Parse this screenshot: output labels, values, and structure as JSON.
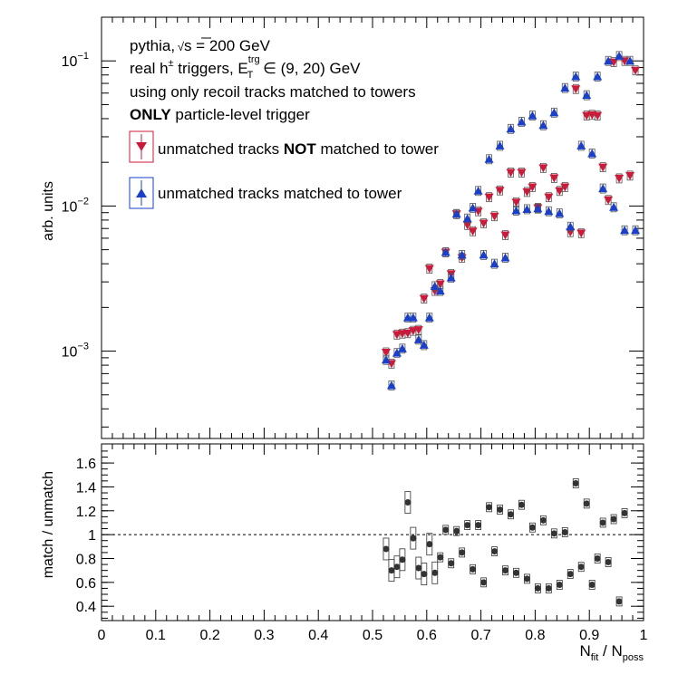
{
  "chart_data": {
    "type": "scatter",
    "top_panel": {
      "ylabel": "arb. units",
      "yscale": "log",
      "ylim": [
        0.00025,
        0.2
      ],
      "y_ticks": [
        {
          "value": 0.1,
          "base": "10",
          "exp": "−1"
        },
        {
          "value": 0.01,
          "base": "10",
          "exp": "−2"
        },
        {
          "value": 0.001,
          "base": "10",
          "exp": "−3"
        }
      ],
      "text": {
        "line1a": "pythia, ",
        "line1b": "s",
        "line1c": " = 200 GeV",
        "line2a": "real h",
        "line2b": "±",
        "line2c": " triggers, E",
        "line2d": "trg",
        "line2e": "T",
        "line2f": " ∈ (9, 20) GeV",
        "line3": "using only recoil tracks matched to towers",
        "line4a": "ONLY",
        "line4b": " particle-level trigger"
      },
      "legend": {
        "entry1a": "unmatched tracks ",
        "entry1b": "NOT",
        "entry1c": " matched to tower",
        "entry2": "unmatched tracks matched to tower"
      },
      "series": [
        {
          "name": "unmatched tracks NOT matched to tower",
          "color": "#cc1a3a",
          "marker": "triangle-down",
          "points": [
            [
              0.525,
              0.00098
            ],
            [
              0.535,
              0.00082
            ],
            [
              0.545,
              0.0013
            ],
            [
              0.555,
              0.00132
            ],
            [
              0.565,
              0.00133
            ],
            [
              0.575,
              0.00138
            ],
            [
              0.585,
              0.0014
            ],
            [
              0.595,
              0.0023
            ],
            [
              0.605,
              0.0037
            ],
            [
              0.615,
              0.0026
            ],
            [
              0.625,
              0.0029
            ],
            [
              0.635,
              0.0048
            ],
            [
              0.645,
              0.0034
            ],
            [
              0.655,
              0.0088
            ],
            [
              0.665,
              0.0044
            ],
            [
              0.675,
              0.0074
            ],
            [
              0.685,
              0.0067
            ],
            [
              0.695,
              0.0092
            ],
            [
              0.705,
              0.0076
            ],
            [
              0.715,
              0.0115
            ],
            [
              0.725,
              0.0085
            ],
            [
              0.735,
              0.0128
            ],
            [
              0.745,
              0.0063
            ],
            [
              0.755,
              0.017
            ],
            [
              0.765,
              0.0106
            ],
            [
              0.775,
              0.017
            ],
            [
              0.785,
              0.0125
            ],
            [
              0.795,
              0.0135
            ],
            [
              0.805,
              0.0097
            ],
            [
              0.815,
              0.0183
            ],
            [
              0.825,
              0.0115
            ],
            [
              0.835,
              0.0156
            ],
            [
              0.845,
              0.0127
            ],
            [
              0.855,
              0.0135
            ],
            [
              0.865,
              0.0066
            ],
            [
              0.875,
              0.064
            ],
            [
              0.885,
              0.0065
            ],
            [
              0.895,
              0.042
            ],
            [
              0.905,
              0.0425
            ],
            [
              0.915,
              0.042
            ],
            [
              0.925,
              0.0185
            ],
            [
              0.935,
              0.011
            ],
            [
              0.945,
              0.098
            ],
            [
              0.955,
              0.0155
            ],
            [
              0.965,
              0.1
            ],
            [
              0.975,
              0.0162
            ],
            [
              0.985,
              0.086
            ]
          ]
        },
        {
          "name": "unmatched tracks matched to tower",
          "color": "#1a3fc8",
          "marker": "triangle-up",
          "points": [
            [
              0.525,
              0.00087
            ],
            [
              0.535,
              0.00058
            ],
            [
              0.545,
              0.00097
            ],
            [
              0.555,
              0.00104
            ],
            [
              0.565,
              0.0017
            ],
            [
              0.575,
              0.0017
            ],
            [
              0.585,
              0.0012
            ],
            [
              0.595,
              0.0011
            ],
            [
              0.605,
              0.0017
            ],
            [
              0.615,
              0.0028
            ],
            [
              0.625,
              0.0026
            ],
            [
              0.635,
              0.0048
            ],
            [
              0.645,
              0.0032
            ],
            [
              0.655,
              0.0088
            ],
            [
              0.665,
              0.0046
            ],
            [
              0.675,
              0.0082
            ],
            [
              0.685,
              0.0097
            ],
            [
              0.695,
              0.0127
            ],
            [
              0.705,
              0.0046
            ],
            [
              0.715,
              0.021
            ],
            [
              0.725,
              0.004
            ],
            [
              0.735,
              0.026
            ],
            [
              0.745,
              0.0044
            ],
            [
              0.755,
              0.034
            ],
            [
              0.765,
              0.0093
            ],
            [
              0.775,
              0.038
            ],
            [
              0.785,
              0.0095
            ],
            [
              0.795,
              0.042
            ],
            [
              0.805,
              0.0096
            ],
            [
              0.815,
              0.036
            ],
            [
              0.825,
              0.0092
            ],
            [
              0.835,
              0.044
            ],
            [
              0.845,
              0.0089
            ],
            [
              0.855,
              0.065
            ],
            [
              0.865,
              0.0072
            ],
            [
              0.875,
              0.078
            ],
            [
              0.885,
              0.026
            ],
            [
              0.895,
              0.058
            ],
            [
              0.905,
              0.023
            ],
            [
              0.915,
              0.078
            ],
            [
              0.925,
              0.0132
            ],
            [
              0.935,
              0.1
            ],
            [
              0.945,
              0.0098
            ],
            [
              0.955,
              0.108
            ],
            [
              0.965,
              0.0068
            ],
            [
              0.975,
              0.1
            ],
            [
              0.985,
              0.0068
            ]
          ]
        }
      ]
    },
    "bottom_panel": {
      "ylabel": "match / unmatch",
      "ylim": [
        0.28,
        1.76
      ],
      "y_ticks": [
        "0.4",
        "0.6",
        "0.8",
        "1",
        "1.2",
        "1.4",
        "1.6"
      ],
      "reference_line": 1.0,
      "series": [
        {
          "name": "match / unmatch",
          "color": "#333333",
          "marker": "circle",
          "points": [
            [
              0.525,
              0.88
            ],
            [
              0.535,
              0.7
            ],
            [
              0.545,
              0.73
            ],
            [
              0.555,
              0.79
            ],
            [
              0.565,
              1.27
            ],
            [
              0.575,
              0.97
            ],
            [
              0.585,
              0.72
            ],
            [
              0.595,
              0.67
            ],
            [
              0.605,
              0.92
            ],
            [
              0.615,
              0.68
            ],
            [
              0.625,
              0.81
            ],
            [
              0.635,
              1.04
            ],
            [
              0.645,
              0.76
            ],
            [
              0.655,
              1.03
            ],
            [
              0.665,
              0.85
            ],
            [
              0.675,
              1.08
            ],
            [
              0.685,
              0.71
            ],
            [
              0.695,
              1.08
            ],
            [
              0.705,
              0.6
            ],
            [
              0.715,
              1.23
            ],
            [
              0.725,
              0.86
            ],
            [
              0.735,
              1.21
            ],
            [
              0.745,
              0.7
            ],
            [
              0.755,
              1.17
            ],
            [
              0.765,
              0.68
            ],
            [
              0.775,
              1.25
            ],
            [
              0.785,
              0.63
            ],
            [
              0.795,
              1.06
            ],
            [
              0.805,
              0.55
            ],
            [
              0.815,
              1.12
            ],
            [
              0.825,
              0.55
            ],
            [
              0.835,
              1.01
            ],
            [
              0.845,
              0.58
            ],
            [
              0.855,
              1.02
            ],
            [
              0.865,
              0.67
            ],
            [
              0.875,
              1.43
            ],
            [
              0.885,
              0.73
            ],
            [
              0.895,
              1.26
            ],
            [
              0.905,
              0.58
            ],
            [
              0.915,
              0.8
            ],
            [
              0.925,
              1.1
            ],
            [
              0.935,
              0.77
            ],
            [
              0.945,
              1.13
            ],
            [
              0.955,
              0.44
            ],
            [
              0.965,
              1.18
            ]
          ]
        }
      ]
    },
    "xlabel": {
      "a": "N",
      "b": "fit",
      "c": " / N",
      "d": "poss"
    },
    "xlim": [
      0,
      1
    ],
    "x_ticks": [
      "0",
      "0.1",
      "0.2",
      "0.3",
      "0.4",
      "0.5",
      "0.6",
      "0.7",
      "0.8",
      "0.9",
      "1"
    ]
  }
}
